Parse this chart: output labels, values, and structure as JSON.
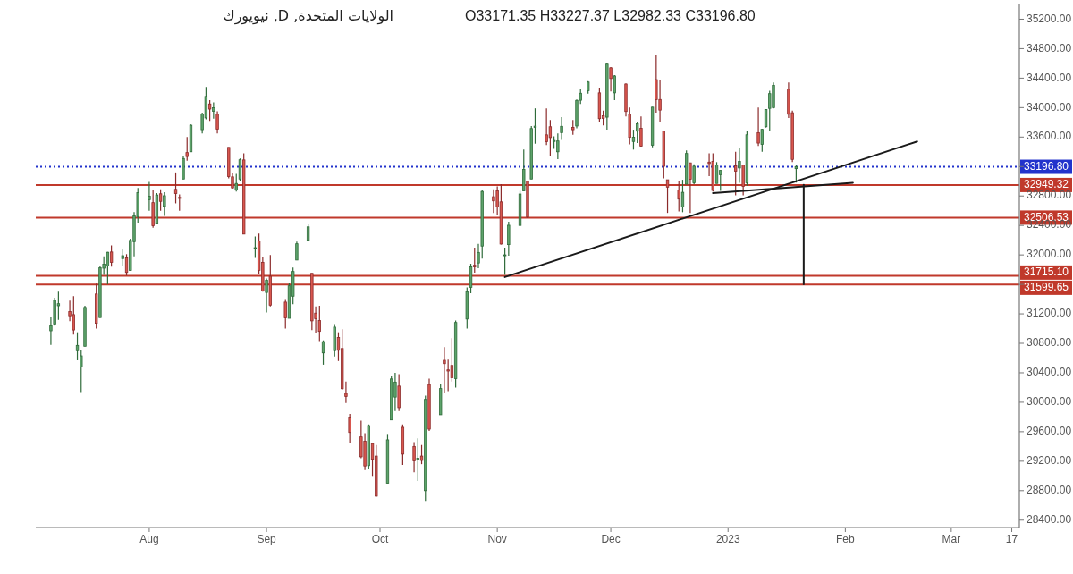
{
  "chart_data": {
    "type": "candlestick",
    "title": "الولايات المتحدة, D, نيويورك",
    "subtitle": "O33171.35 H33227.37 L32982.33 C33196.80",
    "x": [
      "2022-07-06",
      "2022-07-07",
      "2022-07-08",
      "2022-07-11",
      "2022-07-12",
      "2022-07-13",
      "2022-07-14",
      "2022-07-15",
      "2022-07-18",
      "2022-07-19",
      "2022-07-20",
      "2022-07-21",
      "2022-07-22",
      "2022-07-25",
      "2022-07-26",
      "2022-07-27",
      "2022-07-28",
      "2022-07-29",
      "2022-08-01",
      "2022-08-02",
      "2022-08-03",
      "2022-08-04",
      "2022-08-05",
      "2022-08-08",
      "2022-08-09",
      "2022-08-10",
      "2022-08-11",
      "2022-08-12",
      "2022-08-15",
      "2022-08-16",
      "2022-08-17",
      "2022-08-18",
      "2022-08-19",
      "2022-08-22",
      "2022-08-23",
      "2022-08-24",
      "2022-08-25",
      "2022-08-26",
      "2022-08-29",
      "2022-08-30",
      "2022-08-31",
      "2022-09-01",
      "2022-09-02",
      "2022-09-06",
      "2022-09-07",
      "2022-09-08",
      "2022-09-09",
      "2022-09-12",
      "2022-09-13",
      "2022-09-14",
      "2022-09-15",
      "2022-09-16",
      "2022-09-19",
      "2022-09-20",
      "2022-09-21",
      "2022-09-22",
      "2022-09-23",
      "2022-09-26",
      "2022-09-27",
      "2022-09-28",
      "2022-09-29",
      "2022-09-30",
      "2022-10-03",
      "2022-10-04",
      "2022-10-05",
      "2022-10-06",
      "2022-10-07",
      "2022-10-10",
      "2022-10-11",
      "2022-10-12",
      "2022-10-13",
      "2022-10-14",
      "2022-10-17",
      "2022-10-18",
      "2022-10-19",
      "2022-10-20",
      "2022-10-21",
      "2022-10-24",
      "2022-10-25",
      "2022-10-26",
      "2022-10-27",
      "2022-10-28",
      "2022-10-31",
      "2022-11-01",
      "2022-11-02",
      "2022-11-03",
      "2022-11-04",
      "2022-11-07",
      "2022-11-08",
      "2022-11-09",
      "2022-11-10",
      "2022-11-11",
      "2022-11-14",
      "2022-11-15",
      "2022-11-16",
      "2022-11-17",
      "2022-11-18",
      "2022-11-21",
      "2022-11-22",
      "2022-11-23",
      "2022-11-25",
      "2022-11-28",
      "2022-11-29",
      "2022-11-30",
      "2022-12-01",
      "2022-12-02",
      "2022-12-05",
      "2022-12-06",
      "2022-12-07",
      "2022-12-08",
      "2022-12-09",
      "2022-12-12",
      "2022-12-13",
      "2022-12-14",
      "2022-12-15",
      "2022-12-16",
      "2022-12-19",
      "2022-12-20",
      "2022-12-21",
      "2022-12-22",
      "2022-12-23",
      "2022-12-27",
      "2022-12-28",
      "2022-12-29",
      "2022-12-30",
      "2023-01-03",
      "2023-01-04",
      "2023-01-05",
      "2023-01-06",
      "2023-01-09",
      "2023-01-10",
      "2023-01-11",
      "2023-01-12",
      "2023-01-13",
      "2023-01-17",
      "2023-01-18",
      "2023-01-19"
    ],
    "ohlc": [
      [
        30970,
        31160,
        30780,
        31037
      ],
      [
        31060,
        31420,
        31040,
        31384
      ],
      [
        31310,
        31500,
        31120,
        31338
      ],
      [
        31230,
        31380,
        31100,
        31174
      ],
      [
        31190,
        31440,
        30920,
        30981
      ],
      [
        30700,
        30950,
        30570,
        30772
      ],
      [
        30480,
        30710,
        30140,
        30630
      ],
      [
        30760,
        31310,
        30760,
        31288
      ],
      [
        31470,
        31610,
        31000,
        31072
      ],
      [
        31150,
        31850,
        31150,
        31827
      ],
      [
        31820,
        31980,
        31730,
        31875
      ],
      [
        31850,
        32040,
        31600,
        32036
      ],
      [
        32040,
        32130,
        31840,
        31899
      ],
      [
        31950,
        32080,
        31850,
        31990
      ],
      [
        31960,
        32010,
        31720,
        31762
      ],
      [
        31790,
        32220,
        31790,
        32197
      ],
      [
        32180,
        32580,
        31980,
        32529
      ],
      [
        32520,
        32910,
        32440,
        32845
      ],
      [
        32750,
        32990,
        32600,
        32798
      ],
      [
        32710,
        32880,
        32370,
        32396
      ],
      [
        32430,
        32840,
        32430,
        32813
      ],
      [
        32830,
        32890,
        32600,
        32727
      ],
      [
        32660,
        32850,
        32530,
        32803
      ],
      [
        32890,
        33120,
        32700,
        32832
      ],
      [
        32780,
        32820,
        32600,
        32775
      ],
      [
        33030,
        33340,
        33030,
        33309
      ],
      [
        33390,
        33600,
        33280,
        33336
      ],
      [
        33400,
        33770,
        33400,
        33761
      ],
      [
        33700,
        33930,
        33650,
        33913
      ],
      [
        33860,
        34280,
        33840,
        34152
      ],
      [
        34050,
        34100,
        33820,
        33980
      ],
      [
        33950,
        34070,
        33850,
        33999
      ],
      [
        33910,
        33950,
        33650,
        33706
      ],
      [
        33460,
        33460,
        33040,
        33064
      ],
      [
        33060,
        33110,
        32900,
        32910
      ],
      [
        32880,
        33100,
        32860,
        32970
      ],
      [
        33030,
        33310,
        33000,
        33292
      ],
      [
        33290,
        33380,
        32280,
        32283
      ],
      [
        32090,
        32250,
        31960,
        32098
      ],
      [
        32190,
        32290,
        31740,
        31791
      ],
      [
        31900,
        31970,
        31500,
        31510
      ],
      [
        31490,
        31680,
        31220,
        31656
      ],
      [
        31710,
        32000,
        31300,
        31318
      ],
      [
        31360,
        31400,
        31000,
        31145
      ],
      [
        31140,
        31620,
        31140,
        31581
      ],
      [
        31440,
        31830,
        31330,
        31775
      ],
      [
        31930,
        32180,
        31930,
        32152
      ],
      [
        32200,
        32420,
        32200,
        32381
      ],
      [
        31750,
        31750,
        30980,
        31105
      ],
      [
        31210,
        31300,
        30940,
        31135
      ],
      [
        31110,
        31310,
        30830,
        30962
      ],
      [
        30670,
        30840,
        30510,
        30822
      ],
      [
        30700,
        31060,
        30620,
        31020
      ],
      [
        30880,
        30950,
        30560,
        30706
      ],
      [
        30730,
        30990,
        30170,
        30184
      ],
      [
        30120,
        30280,
        29990,
        30077
      ],
      [
        29800,
        29840,
        29440,
        29590
      ],
      [
        29530,
        29750,
        29240,
        29260
      ],
      [
        29470,
        29580,
        29080,
        29135
      ],
      [
        29140,
        29700,
        29090,
        29684
      ],
      [
        29440,
        29440,
        29000,
        29226
      ],
      [
        29270,
        29420,
        28720,
        28726
      ],
      [
        28900,
        29570,
        28900,
        29490
      ],
      [
        29760,
        30360,
        29760,
        30317
      ],
      [
        30070,
        30400,
        29880,
        30274
      ],
      [
        30220,
        30380,
        29880,
        29927
      ],
      [
        29660,
        29700,
        29150,
        29297
      ],
      [
        29400,
        29460,
        29050,
        29203
      ],
      [
        29220,
        29510,
        28930,
        29240
      ],
      [
        29270,
        29420,
        29160,
        29211
      ],
      [
        28800,
        30090,
        28660,
        30039
      ],
      [
        30240,
        30320,
        29610,
        29635
      ],
      [
        29830,
        30250,
        29830,
        30186
      ],
      [
        30570,
        30750,
        30130,
        30524
      ],
      [
        30440,
        30580,
        30150,
        30424
      ],
      [
        30500,
        30870,
        30280,
        30334
      ],
      [
        30320,
        31110,
        30200,
        31083
      ],
      [
        31130,
        31560,
        31000,
        31500
      ],
      [
        31560,
        31880,
        31480,
        31837
      ],
      [
        31860,
        32100,
        31760,
        31839
      ],
      [
        31890,
        32150,
        31820,
        32034
      ],
      [
        32120,
        32880,
        31950,
        32862
      ],
      [
        32790,
        32890,
        32570,
        32733
      ],
      [
        32870,
        32930,
        32540,
        32653
      ],
      [
        32720,
        32960,
        32140,
        32148
      ],
      [
        32000,
        32100,
        31730,
        32001
      ],
      [
        32140,
        32450,
        31990,
        32403
      ],
      [
        32400,
        32870,
        32400,
        32827
      ],
      [
        32870,
        33430,
        32870,
        33161
      ],
      [
        33000,
        33000,
        32500,
        32514
      ],
      [
        33030,
        33750,
        33030,
        33716
      ],
      [
        33730,
        33990,
        33510,
        33748
      ],
      [
        33630,
        33990,
        33490,
        33537
      ],
      [
        33740,
        33830,
        33350,
        33593
      ],
      [
        33540,
        33610,
        33440,
        33554
      ],
      [
        33400,
        33650,
        33300,
        33547
      ],
      [
        33660,
        33870,
        33560,
        33746
      ],
      [
        33730,
        33830,
        33630,
        33700
      ],
      [
        33750,
        34110,
        33720,
        34098
      ],
      [
        34100,
        34260,
        34050,
        34195
      ],
      [
        34230,
        34360,
        34190,
        34347
      ],
      [
        34200,
        34270,
        33810,
        33850
      ],
      [
        33890,
        33960,
        33760,
        33853
      ],
      [
        33870,
        34600,
        33700,
        34590
      ],
      [
        34540,
        34550,
        34220,
        34395
      ],
      [
        34200,
        34440,
        34100,
        34430
      ],
      [
        34320,
        34330,
        33880,
        33947
      ],
      [
        33910,
        34000,
        33500,
        33596
      ],
      [
        33540,
        33700,
        33430,
        33598
      ],
      [
        33680,
        33800,
        33520,
        33781
      ],
      [
        33720,
        33880,
        33470,
        33477
      ],
      [
        33490,
        34010,
        33460,
        34006
      ],
      [
        34380,
        34710,
        33930,
        34109
      ],
      [
        34110,
        34370,
        33800,
        33966
      ],
      [
        33680,
        33680,
        33040,
        33203
      ],
      [
        33020,
        33020,
        32570,
        32920
      ],
      [
        32880,
        33000,
        32590,
        32758
      ],
      [
        32650,
        33020,
        32580,
        32850
      ],
      [
        32960,
        33420,
        32960,
        33377
      ],
      [
        33250,
        33250,
        32570,
        33027
      ],
      [
        32980,
        33230,
        32960,
        33204
      ],
      [
        33260,
        33380,
        33070,
        33241
      ],
      [
        33270,
        33380,
        32860,
        32876
      ],
      [
        32970,
        33260,
        32970,
        33221
      ],
      [
        33090,
        33150,
        32870,
        33147
      ],
      [
        33210,
        33400,
        32810,
        33136
      ],
      [
        33180,
        33450,
        32980,
        33270
      ],
      [
        33220,
        33220,
        32810,
        32930
      ],
      [
        32980,
        33680,
        32940,
        33631
      ],
      [
        33660,
        34000,
        33480,
        33518
      ],
      [
        33500,
        33710,
        33400,
        33705
      ],
      [
        33740,
        33980,
        33730,
        33974
      ],
      [
        33990,
        34230,
        33690,
        34190
      ],
      [
        34000,
        34340,
        33990,
        34303
      ],
      [
        34250,
        34340,
        33860,
        33910
      ],
      [
        33930,
        33960,
        33260,
        33297
      ],
      [
        33171.35,
        33227.37,
        32982.33,
        33196.8
      ]
    ],
    "series": [
      {
        "type": "line",
        "color": "#1a1a1a",
        "x": [
          "2022-11-03",
          "2023-02-20"
        ],
        "values": [
          31700,
          33540
        ]
      },
      {
        "type": "line",
        "color": "#1a1a1a",
        "x": [
          "2022-12-28",
          "2023-02-03"
        ],
        "values": [
          32840,
          32980
        ]
      },
      {
        "type": "line",
        "color": "#1a1a1a",
        "x": [
          "2023-01-21",
          "2023-01-21"
        ],
        "values": [
          32950,
          31600
        ]
      }
    ],
    "xlim": [
      "2022-07-02",
      "2023-03-19"
    ],
    "xticks": [
      {
        "value": "2022-08-01",
        "label": "Aug"
      },
      {
        "value": "2022-09-01",
        "label": "Sep"
      },
      {
        "value": "2022-10-01",
        "label": "Oct"
      },
      {
        "value": "2022-11-01",
        "label": "Nov"
      },
      {
        "value": "2022-12-01",
        "label": "Dec"
      },
      {
        "value": "2023-01-01",
        "label": "2023"
      },
      {
        "value": "2023-02-01",
        "label": "Feb"
      },
      {
        "value": "2023-03-01",
        "label": "Mar"
      },
      {
        "value": "2023-03-17",
        "label": "17"
      }
    ],
    "ylim": [
      28300,
      35400
    ],
    "yticks": [
      {
        "value": 28400,
        "label": "28400.00"
      },
      {
        "value": 28800,
        "label": "28800.00"
      },
      {
        "value": 29200,
        "label": "29200.00"
      },
      {
        "value": 29600,
        "label": "29600.00"
      },
      {
        "value": 30000,
        "label": "30000.00"
      },
      {
        "value": 30400,
        "label": "30400.00"
      },
      {
        "value": 30800,
        "label": "30800.00"
      },
      {
        "value": 31200,
        "label": "31200.00"
      },
      {
        "value": 31600,
        "label": null
      },
      {
        "value": 32000,
        "label": "32000.00"
      },
      {
        "value": 32400,
        "label": "32400.00"
      },
      {
        "value": 32800,
        "label": "32800.00"
      },
      {
        "value": 33200,
        "label": null
      },
      {
        "value": 33600,
        "label": "33600.00"
      },
      {
        "value": 34000,
        "label": "34000.00"
      },
      {
        "value": 34400,
        "label": "34400.00"
      },
      {
        "value": 34800,
        "label": "34800.00"
      },
      {
        "value": 35200,
        "label": "35200.00"
      }
    ],
    "ref_lines": [
      {
        "axis": "y",
        "value": 33196.8,
        "label": "33196.80",
        "color": "#2233cc",
        "line_style": "dotted"
      },
      {
        "axis": "y",
        "value": 32949.32,
        "label": "32949.32",
        "color": "#c0392b",
        "line_style": "solid"
      },
      {
        "axis": "y",
        "value": 32506.53,
        "label": "32506.53",
        "color": "#c0392b",
        "line_style": "solid"
      },
      {
        "axis": "y",
        "value": 31715.1,
        "label": "31715.10",
        "color": "#c0392b",
        "line_style": "solid"
      },
      {
        "axis": "y",
        "value": 31599.65,
        "label": "31599.65",
        "color": "#c0392b",
        "line_style": "solid"
      }
    ]
  }
}
